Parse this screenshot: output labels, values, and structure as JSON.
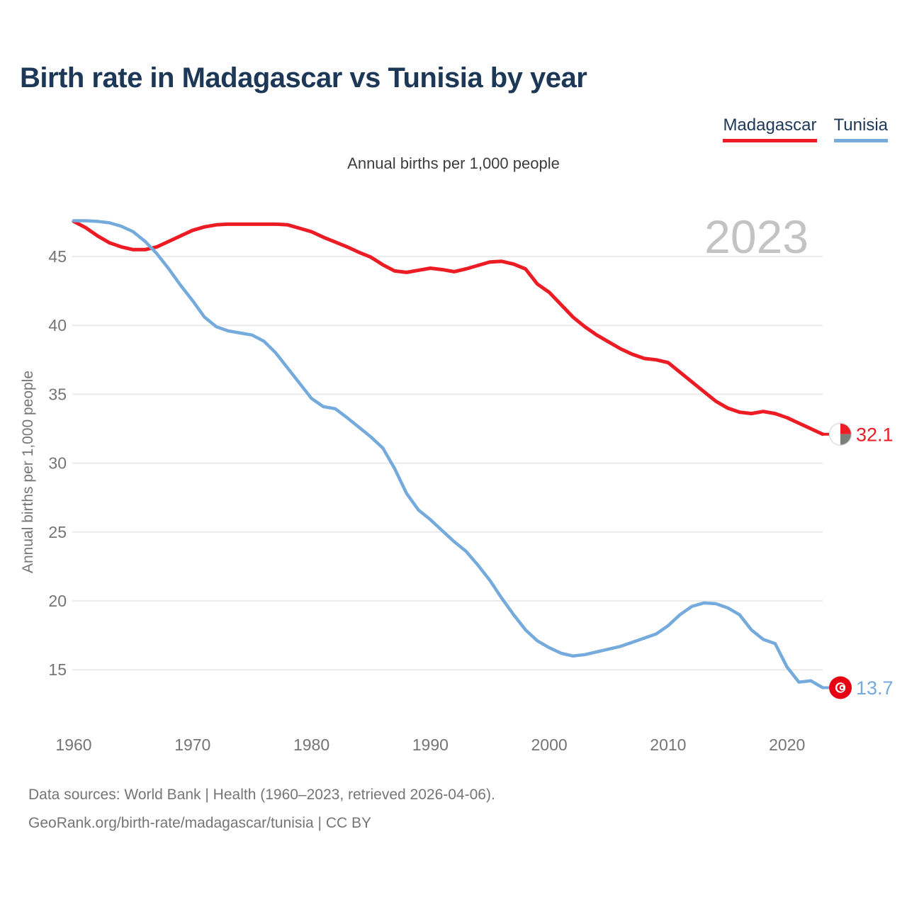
{
  "title": "Birth rate in Madagascar vs Tunisia by year",
  "subtitle": "Annual births per 1,000 people",
  "legend": {
    "items": [
      {
        "label": "Madagascar",
        "color": "#ed1c24"
      },
      {
        "label": "Tunisia",
        "color": "#74aadc"
      }
    ]
  },
  "footer": {
    "line1": "Data sources: World Bank | Health (1960–2023, retrieved 2026-04-06).",
    "line2": "GeoRank.org/birth-rate/madagascar/tunisia | CC BY"
  },
  "chart_data": {
    "type": "line",
    "title": "Birth rate in Madagascar vs Tunisia by year",
    "subtitle": "Annual births per 1,000 people",
    "ylabel": "Annual births per 1,000 people",
    "xlabel": "",
    "watermark": "2023",
    "grid": true,
    "legend_position": "top-right",
    "yticks": [
      15,
      20,
      25,
      30,
      35,
      40,
      45
    ],
    "xticks": [
      1960,
      1970,
      1980,
      1990,
      2000,
      2010,
      2020
    ],
    "xlim": [
      1960,
      2023
    ],
    "ylim": [
      12.5,
      49
    ],
    "x": [
      1960,
      1961,
      1962,
      1963,
      1964,
      1965,
      1966,
      1967,
      1968,
      1969,
      1970,
      1971,
      1972,
      1973,
      1974,
      1975,
      1976,
      1977,
      1978,
      1979,
      1980,
      1981,
      1982,
      1983,
      1984,
      1985,
      1986,
      1987,
      1988,
      1989,
      1990,
      1991,
      1992,
      1993,
      1994,
      1995,
      1996,
      1997,
      1998,
      1999,
      2000,
      2001,
      2002,
      2003,
      2004,
      2005,
      2006,
      2007,
      2008,
      2009,
      2010,
      2011,
      2012,
      2013,
      2014,
      2015,
      2016,
      2017,
      2018,
      2019,
      2020,
      2021,
      2022,
      2023
    ],
    "series": [
      {
        "id": "madagascar",
        "name": "Madagascar",
        "color": "#ed1c24",
        "end_label": "32.1",
        "end_value": 32.1,
        "flag": {
          "type": "madagascar",
          "white": "#ffffff",
          "red": "#ee1c25",
          "green": "#7b7f7b"
        },
        "values": [
          47.55,
          47.1,
          46.5,
          46.0,
          45.7,
          45.5,
          45.5,
          45.7,
          46.1,
          46.5,
          46.9,
          47.15,
          47.3,
          47.35,
          47.35,
          47.35,
          47.35,
          47.35,
          47.3,
          47.05,
          46.8,
          46.4,
          46.05,
          45.7,
          45.3,
          44.95,
          44.4,
          43.95,
          43.85,
          44.0,
          44.15,
          44.05,
          43.9,
          44.1,
          44.35,
          44.6,
          44.65,
          44.45,
          44.1,
          43.0,
          42.4,
          41.5,
          40.6,
          39.9,
          39.3,
          38.8,
          38.3,
          37.9,
          37.6,
          37.5,
          37.3,
          36.6,
          35.9,
          35.2,
          34.5,
          34.0,
          33.7,
          33.6,
          33.75,
          33.6,
          33.3,
          32.9,
          32.5,
          32.1
        ]
      },
      {
        "id": "tunisia",
        "name": "Tunisia",
        "color": "#74aadc",
        "end_label": "13.7",
        "end_value": 13.7,
        "flag": {
          "type": "tunisia",
          "red": "#e70013",
          "white": "#ffffff"
        },
        "values": [
          47.6,
          47.6,
          47.55,
          47.45,
          47.2,
          46.8,
          46.1,
          45.2,
          44.1,
          42.9,
          41.8,
          40.6,
          39.9,
          39.6,
          39.45,
          39.3,
          38.85,
          38.0,
          36.9,
          35.8,
          34.7,
          34.1,
          33.95,
          33.3,
          32.6,
          31.9,
          31.1,
          29.6,
          27.8,
          26.6,
          25.9,
          25.1,
          24.3,
          23.6,
          22.6,
          21.5,
          20.2,
          19.0,
          17.9,
          17.1,
          16.6,
          16.2,
          16.0,
          16.1,
          16.3,
          16.5,
          16.7,
          17.0,
          17.3,
          17.6,
          18.2,
          19.0,
          19.6,
          19.85,
          19.8,
          19.5,
          19.0,
          17.9,
          17.2,
          16.9,
          15.2,
          14.1,
          14.2,
          13.7
        ]
      }
    ],
    "colors": {
      "gridline": "#ebebeb",
      "tick_text": "#757575",
      "watermark": "#c3c3c3",
      "axis_title": "#757575"
    }
  }
}
